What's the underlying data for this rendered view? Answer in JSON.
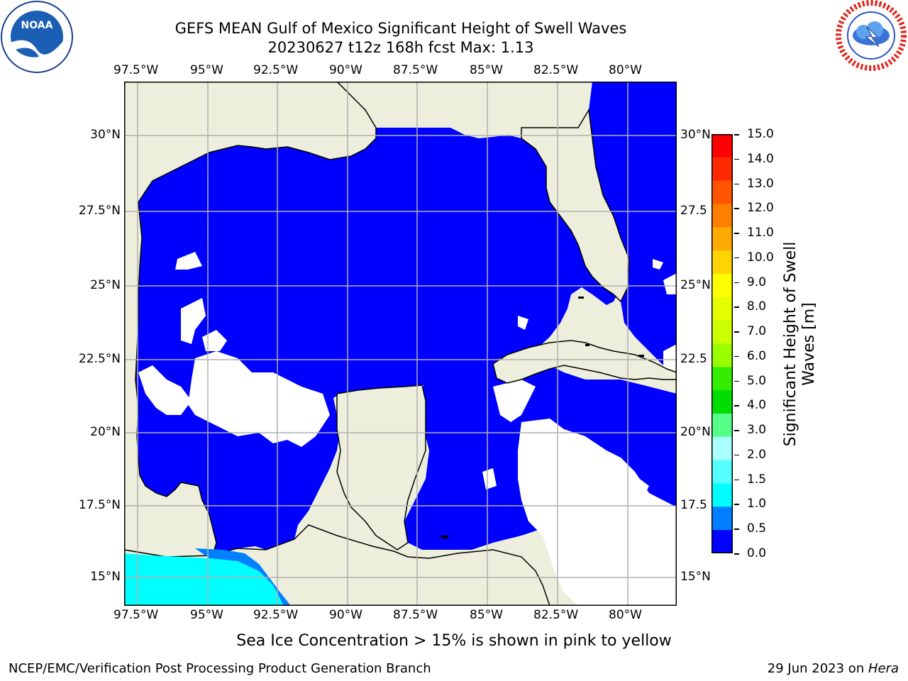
{
  "header": {
    "title_line1": "GEFS MEAN Gulf of Mexico Significant Height of Swell Waves",
    "title_line2": "20230627 t12z 168h fcst   Max: 1.13"
  },
  "logos": {
    "left": {
      "name": "noaa-logo",
      "text": "NOAA",
      "ring_text": "NATIONAL OCEANIC AND ATMOSPHERIC ADMINISTRATION • U.S. DEPARTMENT OF COMMERCE"
    },
    "right": {
      "name": "nws-logo",
      "ring_text": "NATIONAL WEATHER SERVICE"
    }
  },
  "map": {
    "lon_labels": [
      "97.5°W",
      "95°W",
      "92.5°W",
      "90°W",
      "87.5°W",
      "85°W",
      "82.5°W",
      "80°W"
    ],
    "lat_labels": [
      "30°N",
      "27.5°N",
      "25°N",
      "22.5°N",
      "20°N",
      "17.5°N",
      "15°N"
    ],
    "right_lat_labels": [
      "30°N",
      "27.5",
      "25°N",
      "22.5",
      "20°N",
      "17.5",
      "15°N"
    ],
    "colors": {
      "land": "#eeeedc",
      "water_low": "#0000ff",
      "no_data": "#ffffff",
      "grid": "#b0b0b0",
      "coast": "#000000"
    }
  },
  "colorbar": {
    "label": "Significant Height of Swell Waves [m]",
    "ticks": [
      "15.0",
      "14.0",
      "13.0",
      "12.0",
      "11.0",
      "10.0",
      "9.0",
      "8.0",
      "7.0",
      "6.0",
      "5.0",
      "4.0",
      "3.0",
      "2.0",
      "1.5",
      "1.0",
      "0.5",
      "0.0"
    ],
    "colors_top_to_bottom": [
      "#ff0000",
      "#ff2a00",
      "#ff5500",
      "#ff8000",
      "#ffaa00",
      "#ffd400",
      "#ffff00",
      "#e6ff00",
      "#ccff00",
      "#99ff00",
      "#33ee00",
      "#00dd00",
      "#55ff88",
      "#aaffff",
      "#55ffff",
      "#00ffff",
      "#0080ff",
      "#0000ff"
    ]
  },
  "notes": {
    "sea_ice": "Sea Ice Concentration > 15% is shown in pink to yellow"
  },
  "footer": {
    "left": "NCEP/EMC/Verification Post Processing Product Generation Branch",
    "right_prefix": "29 Jun 2023 on ",
    "right_machine": "Hera"
  }
}
